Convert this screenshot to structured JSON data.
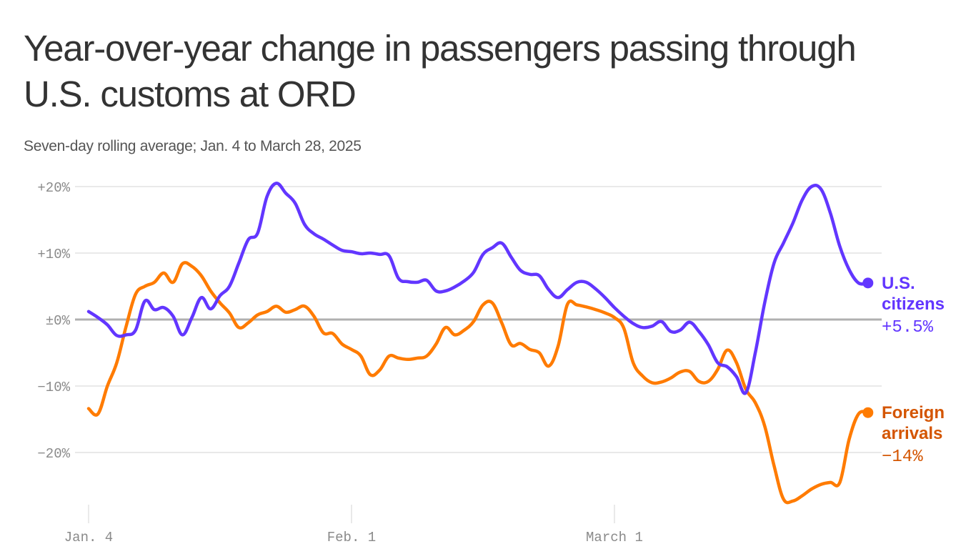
{
  "header": {
    "title": "Year-over-year change in passengers passing through U.S. customs at ORD",
    "subtitle": "Seven-day rolling average; Jan. 4 to March 28, 2025"
  },
  "colors": {
    "us_citizens": "#6236ff",
    "foreign_arrivals": "#ff7b00",
    "foreign_label": "#d45500",
    "gridline": "#e2e2e2",
    "zero_line": "#b0b0b0",
    "title": "#333333",
    "subtitle": "#555555",
    "tick": "#8a8a8a"
  },
  "chart_data": {
    "type": "line",
    "title": "Year-over-year change in passengers passing through U.S. customs at ORD",
    "subtitle": "Seven-day rolling average; Jan. 4 to March 28, 2025",
    "xlabel": "",
    "ylabel": "",
    "x_unit": "days since Jan. 4, 2025",
    "xlim": [
      0,
      83
    ],
    "ylim": [
      -28,
      21
    ],
    "grid": true,
    "y_ticks": [
      {
        "value": 20,
        "label": "+20%"
      },
      {
        "value": 10,
        "label": "+10%"
      },
      {
        "value": 0,
        "label": "±0%"
      },
      {
        "value": -10,
        "label": "−10%"
      },
      {
        "value": -20,
        "label": "−20%"
      }
    ],
    "x_ticks": [
      {
        "value": 0,
        "label": "Jan. 4"
      },
      {
        "value": 28,
        "label": "Feb. 1"
      },
      {
        "value": 56,
        "label": "March 1"
      }
    ],
    "legend": "direct labels at line ends (right)",
    "series": [
      {
        "name": "U.S. citizens",
        "end_label": [
          "U.S.",
          "citizens"
        ],
        "end_value_label": "+5.5%",
        "color_key": "us_citizens",
        "x": [
          0,
          1,
          2,
          3,
          4,
          5,
          6,
          7,
          8,
          9,
          10,
          11,
          12,
          13,
          14,
          15,
          16,
          17,
          18,
          19,
          20,
          21,
          22,
          23,
          24,
          25,
          26,
          27,
          28,
          29,
          30,
          31,
          32,
          33,
          34,
          35,
          36,
          37,
          38,
          39,
          40,
          41,
          42,
          43,
          44,
          45,
          46,
          47,
          48,
          49,
          50,
          51,
          52,
          53,
          54,
          55,
          56,
          57,
          58,
          59,
          60,
          61,
          62,
          63,
          64,
          65,
          66,
          67,
          68,
          69,
          70,
          71,
          72,
          73,
          74,
          75,
          76,
          77,
          78,
          79,
          80,
          81,
          82,
          83
        ],
        "values": [
          1.2,
          0.3,
          -0.8,
          -2.4,
          -2.3,
          -1.6,
          2.8,
          1.5,
          1.8,
          0.5,
          -2.3,
          0.3,
          3.3,
          1.6,
          3.6,
          5.0,
          8.5,
          12.0,
          13.0,
          18.5,
          20.5,
          19.0,
          17.5,
          14.3,
          12.9,
          12.1,
          11.2,
          10.4,
          10.2,
          9.9,
          10.0,
          9.8,
          9.6,
          6.2,
          5.7,
          5.6,
          5.9,
          4.3,
          4.3,
          4.9,
          5.8,
          7.1,
          9.8,
          10.8,
          11.5,
          9.4,
          7.4,
          6.8,
          6.6,
          4.5,
          3.3,
          4.5,
          5.6,
          5.6,
          4.6,
          3.3,
          1.8,
          0.5,
          -0.6,
          -1.2,
          -1.0,
          -0.3,
          -1.8,
          -1.6,
          -0.4,
          -1.8,
          -3.8,
          -6.5,
          -7.1,
          -8.6,
          -11.0,
          -5.0,
          2.5,
          8.5,
          11.5,
          14.5,
          18.0,
          20.0,
          19.6,
          16.0,
          11.0,
          7.5,
          5.5,
          5.5
        ]
      },
      {
        "name": "Foreign arrivals",
        "end_label": [
          "Foreign",
          "arrivals"
        ],
        "end_value_label": "−14%",
        "color_key": "foreign_arrivals",
        "x": [
          0,
          1,
          2,
          3,
          4,
          5,
          6,
          7,
          8,
          9,
          10,
          11,
          12,
          13,
          14,
          15,
          16,
          17,
          18,
          19,
          20,
          21,
          22,
          23,
          24,
          25,
          26,
          27,
          28,
          29,
          30,
          31,
          32,
          33,
          34,
          35,
          36,
          37,
          38,
          39,
          40,
          41,
          42,
          43,
          44,
          45,
          46,
          47,
          48,
          49,
          50,
          51,
          52,
          53,
          54,
          55,
          56,
          57,
          58,
          59,
          60,
          61,
          62,
          63,
          64,
          65,
          66,
          67,
          68,
          69,
          70,
          71,
          72,
          73,
          74,
          75,
          76,
          77,
          78,
          79,
          80,
          81,
          82,
          83
        ],
        "values": [
          -13.4,
          -14.2,
          -10.0,
          -6.5,
          -1.0,
          3.8,
          5.0,
          5.6,
          7.0,
          5.6,
          8.4,
          8.0,
          6.6,
          4.3,
          2.5,
          1.0,
          -1.2,
          -0.5,
          0.7,
          1.2,
          2.0,
          1.1,
          1.5,
          2.0,
          0.5,
          -2.0,
          -2.1,
          -3.7,
          -4.5,
          -5.5,
          -8.3,
          -7.6,
          -5.5,
          -5.8,
          -6.0,
          -5.8,
          -5.5,
          -3.7,
          -1.2,
          -2.3,
          -1.6,
          -0.3,
          2.2,
          2.5,
          -0.5,
          -3.8,
          -3.6,
          -4.5,
          -5.0,
          -7.0,
          -4.0,
          2.3,
          2.2,
          1.9,
          1.5,
          1.0,
          0.3,
          -1.3,
          -6.5,
          -8.5,
          -9.5,
          -9.4,
          -8.8,
          -7.9,
          -7.8,
          -9.3,
          -9.3,
          -7.5,
          -4.6,
          -6.5,
          -10.5,
          -12.5,
          -16.0,
          -22.0,
          -27.0,
          -27.3,
          -26.5,
          -25.5,
          -24.8,
          -24.5,
          -24.5,
          -18.0,
          -14.2,
          -14.0
        ]
      }
    ]
  }
}
